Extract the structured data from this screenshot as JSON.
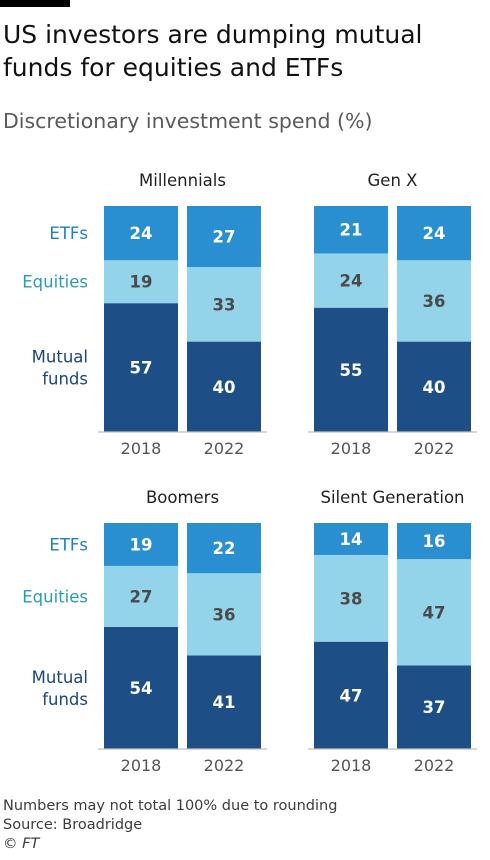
{
  "title": "US investors are dumping mutual funds for equities and ETFs",
  "subtitle": "Discretionary investment spend (%)",
  "colors": {
    "etfs": "#2a8fd0",
    "equities": "#94d4ea",
    "mutual_funds": "#1d4f86",
    "label_etfs": "#1f7fc2",
    "label_equities": "#2a9dac",
    "label_mutual_funds": "#1c4776",
    "axis": "#bfbfbf",
    "tick_text": "#555555"
  },
  "chart_data": [
    {
      "type": "bar",
      "stacked": true,
      "title": "Millennials",
      "categories": [
        "2018",
        "2022"
      ],
      "series": [
        {
          "name": "Mutual funds",
          "values": [
            57,
            40
          ]
        },
        {
          "name": "Equities",
          "values": [
            19,
            33
          ]
        },
        {
          "name": "ETFs",
          "values": [
            24,
            27
          ]
        }
      ]
    },
    {
      "type": "bar",
      "stacked": true,
      "title": "Gen X",
      "categories": [
        "2018",
        "2022"
      ],
      "series": [
        {
          "name": "Mutual funds",
          "values": [
            55,
            40
          ]
        },
        {
          "name": "Equities",
          "values": [
            24,
            36
          ]
        },
        {
          "name": "ETFs",
          "values": [
            21,
            24
          ]
        }
      ]
    },
    {
      "type": "bar",
      "stacked": true,
      "title": "Boomers",
      "categories": [
        "2018",
        "2022"
      ],
      "series": [
        {
          "name": "Mutual funds",
          "values": [
            54,
            41
          ]
        },
        {
          "name": "Equities",
          "values": [
            27,
            36
          ]
        },
        {
          "name": "ETFs",
          "values": [
            19,
            22
          ]
        }
      ]
    },
    {
      "type": "bar",
      "stacked": true,
      "title": "Silent Generation",
      "categories": [
        "2018",
        "2022"
      ],
      "series": [
        {
          "name": "Mutual funds",
          "values": [
            47,
            37
          ]
        },
        {
          "name": "Equities",
          "values": [
            38,
            47
          ]
        },
        {
          "name": "ETFs",
          "values": [
            14,
            16
          ]
        }
      ]
    }
  ],
  "row_labels": {
    "etfs": "ETFs",
    "equities": "Equities",
    "mutual_funds_line1": "Mutual",
    "mutual_funds_line2": "funds"
  },
  "footer": {
    "note": "Numbers may not total 100% due to rounding",
    "source": "Source: Broadridge",
    "credit": "© FT"
  }
}
